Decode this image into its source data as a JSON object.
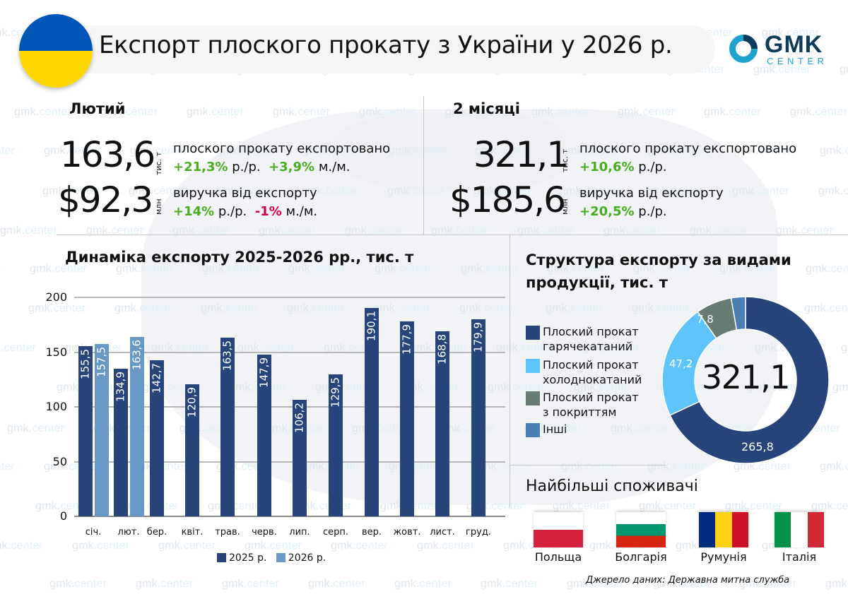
{
  "header": {
    "title": "Експорт плоского прокату з України у 2026 р.",
    "logo": {
      "main": "GMK",
      "sub": "CENTER"
    },
    "flag_colors": {
      "top": "#0057b8",
      "bottom": "#ffd700"
    }
  },
  "watermark": {
    "prefix": "gmk.",
    "suffix": "center"
  },
  "february": {
    "heading": "Лютий",
    "volume": {
      "value": "163,6",
      "unit": "тис. т",
      "label": "плоского прокату експортовано",
      "yoy": "+21,3%",
      "yoy_suffix": "р./р.",
      "mom": "+3,9%",
      "mom_suffix": "м./м."
    },
    "revenue": {
      "value": "$92,3",
      "unit": "млн",
      "label": "виручка від експорту",
      "yoy": "+14%",
      "yoy_suffix": "р./р.",
      "mom": "-1%",
      "mom_suffix": "м./м."
    }
  },
  "two_months": {
    "heading": "2 місяці",
    "volume": {
      "value": "321,1",
      "unit": "тис. т",
      "label": "плоского прокату експортовано",
      "yoy": "+10,6%",
      "yoy_suffix": "р./р."
    },
    "revenue": {
      "value": "$185,6",
      "unit": "млн",
      "label": "виручка від експорту",
      "yoy": "+20,5%",
      "yoy_suffix": "р./р."
    }
  },
  "colors": {
    "positive": "#4aad1f",
    "negative": "#d5004f",
    "series_2025": "#27457a",
    "series_2026": "#6a98c4"
  },
  "chart_data": [
    {
      "type": "bar",
      "title": "Динаміка експорту 2025-2026 рр., тис. т",
      "xlabel": "",
      "ylabel": "тис. т",
      "ylim": [
        0,
        200
      ],
      "yticks": [
        0,
        50,
        100,
        150,
        200
      ],
      "grid": true,
      "legend_position": "bottom",
      "categories": [
        "січ.",
        "лют.",
        "бер.",
        "квіт.",
        "трав.",
        "черв.",
        "лип.",
        "серп.",
        "вер.",
        "жовт.",
        "лист.",
        "груд."
      ],
      "series": [
        {
          "name": "2025 р.",
          "values": [
            155.5,
            134.9,
            142.7,
            120.9,
            163.5,
            147.9,
            106.2,
            129.5,
            190.1,
            177.9,
            168.8,
            179.9
          ],
          "labels": [
            "155,5",
            "134,9",
            "142,7",
            "120,9",
            "163,5",
            "147,9",
            "106,2",
            "129,5",
            "190,1",
            "177,9",
            "168,8",
            "179,9"
          ]
        },
        {
          "name": "2026 р.",
          "values": [
            157.5,
            163.6,
            null,
            null,
            null,
            null,
            null,
            null,
            null,
            null,
            null,
            null
          ],
          "labels": [
            "157,5",
            "163,6"
          ]
        }
      ]
    },
    {
      "type": "pie",
      "title": "Структура експорту за видами продукції, тис. т",
      "center_label": "321,1",
      "total": 321.1,
      "categories": [
        "Плоский прокат гарячекатаний",
        "Плоский прокат холоднокатаний",
        "Плоский прокат з покриттям",
        "Інші"
      ],
      "values": [
        265.8,
        47.2,
        7.8,
        0.3
      ],
      "labels": [
        "265,8",
        "47,2",
        "7,8",
        ""
      ],
      "colors": [
        "#27457a",
        "#5ec4fb",
        "#687c74",
        "#4b7fb2"
      ],
      "legend_position": "left"
    }
  ],
  "structure": {
    "title": "Структура експорту за видами продукції, тис. т",
    "center": "321,1",
    "legend": [
      {
        "line1": "Плоский прокат",
        "line2": "гарячекатаний",
        "color": "#27457a"
      },
      {
        "line1": "Плоский прокат",
        "line2": "холоднокатаний",
        "color": "#5ec4fb"
      },
      {
        "line1": "Плоский прокат",
        "line2": "з покриттям",
        "color": "#687c74"
      },
      {
        "line1": "Інші",
        "line2": "",
        "color": "#4b7fb2"
      }
    ],
    "slice_labels": {
      "hot": "265,8",
      "cold": "47,2",
      "coated": "7,8"
    }
  },
  "consumers": {
    "title": "Найбільші споживачі",
    "countries": [
      {
        "name": "Польща"
      },
      {
        "name": "Болгарія"
      },
      {
        "name": "Румунія"
      },
      {
        "name": "Італія"
      }
    ]
  },
  "source": "Джерело даних: Державна митна служба"
}
